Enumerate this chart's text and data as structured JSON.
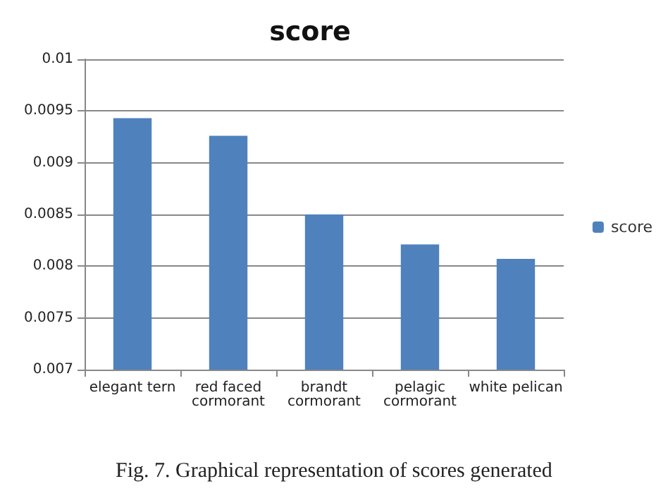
{
  "chart_data": {
    "type": "bar",
    "title": "score",
    "categories": [
      "elegant tern",
      "red faced cormorant",
      "brandt cormorant",
      "pelagic cormorant",
      "white pelican"
    ],
    "series": [
      {
        "name": "score",
        "color": "#4f81bd",
        "values": [
          0.00943,
          0.00926,
          0.0085,
          0.00821,
          0.00807
        ]
      }
    ],
    "ylim": [
      0.007,
      0.01
    ],
    "yticks": [
      0.007,
      0.0075,
      0.008,
      0.0085,
      0.009,
      0.0095,
      0.01
    ],
    "grid": "y",
    "legend": "right",
    "annotations": [
      "Fig. 7.   Graphical representation of scores generated"
    ]
  }
}
